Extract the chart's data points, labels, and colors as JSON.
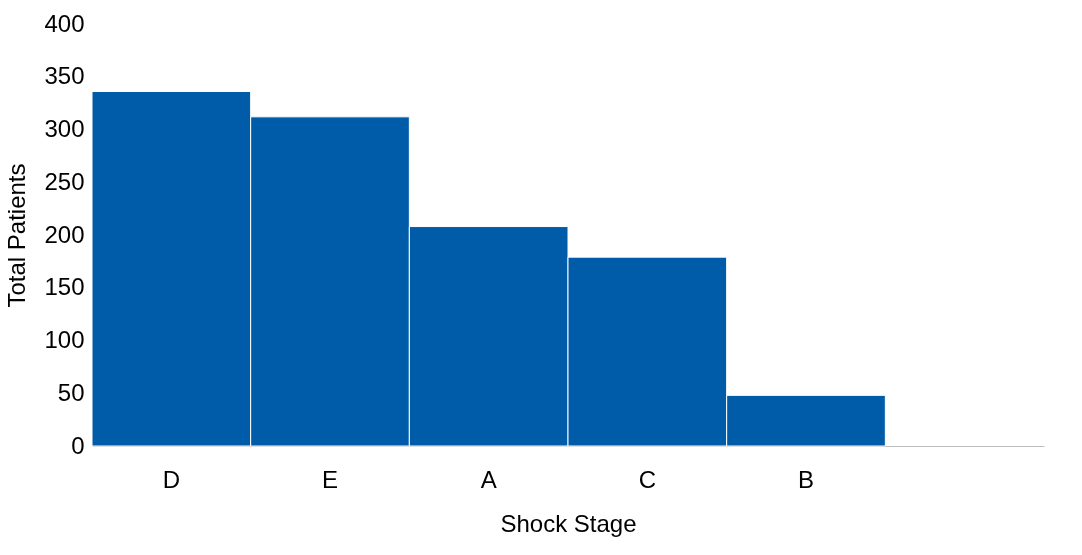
{
  "chart_data": {
    "type": "bar",
    "xlabel": "Shock Stage",
    "ylabel": "Total Patients",
    "categories": [
      "D",
      "E",
      "A",
      "C",
      "B",
      null
    ],
    "values": [
      336,
      312,
      208,
      179,
      48,
      null
    ],
    "color": "#005ba8",
    "ylim": [
      0,
      400
    ],
    "yticks": [
      0,
      50,
      100,
      150,
      200,
      250,
      300,
      350,
      400
    ],
    "grid": false
  }
}
